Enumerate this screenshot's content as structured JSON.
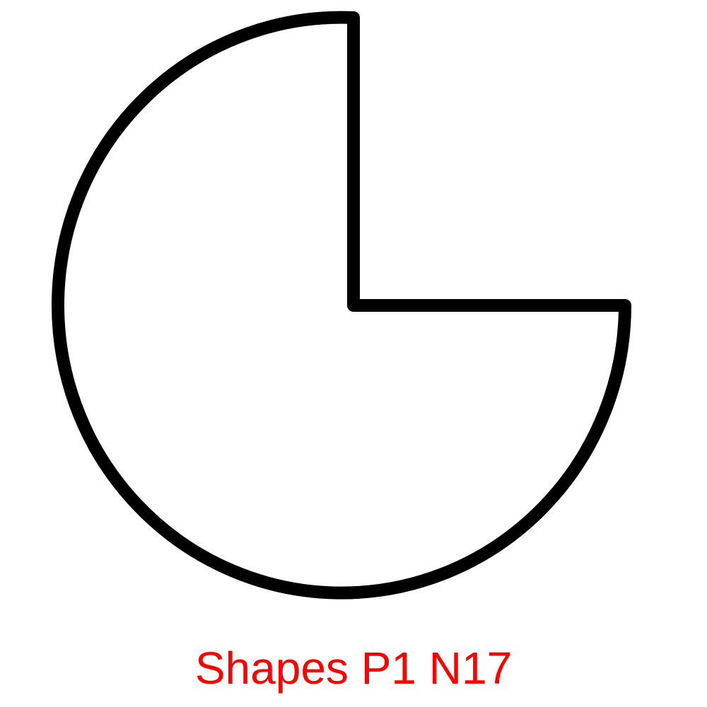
{
  "caption": {
    "text": "Shapes P1 N17",
    "color": "#ff0000"
  },
  "shape": {
    "kind": "three-quarter-circle",
    "missing_quadrant": "top-right",
    "stroke_color": "#000000",
    "fill_color": "#ffffff"
  }
}
